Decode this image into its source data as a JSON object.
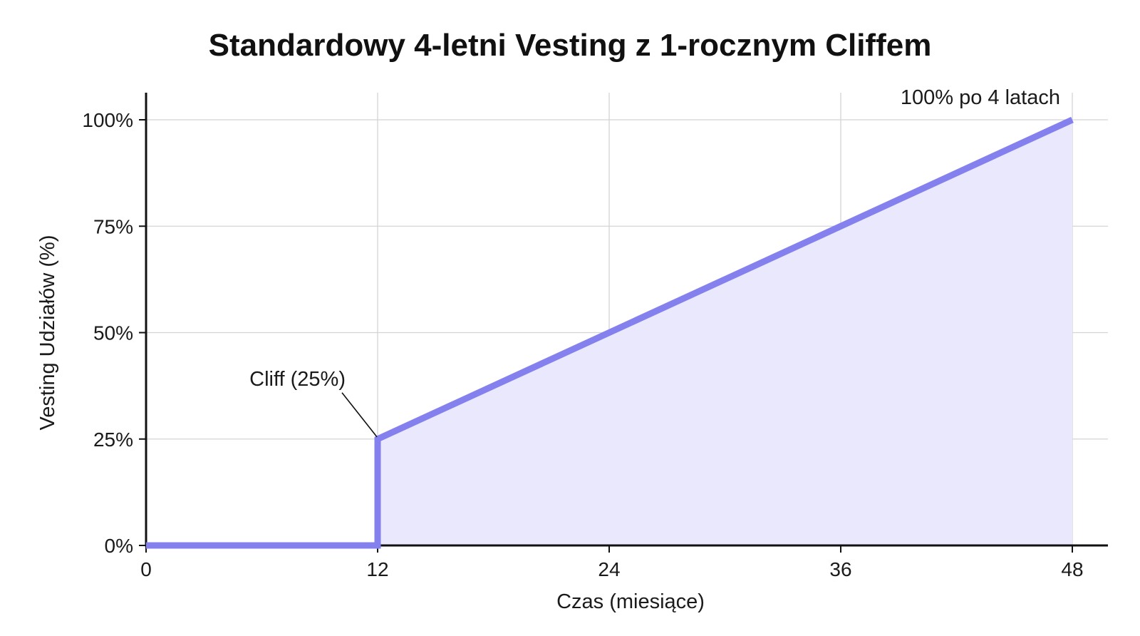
{
  "chart_data": {
    "type": "line",
    "title": "Standardowy 4-letni Vesting z 1-rocznym Cliffem",
    "xlabel": "Czas (miesiące)",
    "ylabel": "Vesting Udziałów (%)",
    "xlim": [
      0,
      48
    ],
    "ylim": [
      0,
      100
    ],
    "x_ticks": [
      0,
      12,
      24,
      36,
      48
    ],
    "x_tick_labels": [
      "0",
      "12",
      "24",
      "36",
      "48"
    ],
    "y_ticks": [
      0,
      25,
      50,
      75,
      100
    ],
    "y_tick_labels": [
      "0%",
      "25%",
      "50%",
      "75%",
      "100%"
    ],
    "grid": true,
    "legend": "none",
    "series": [
      {
        "color": "#8480ee",
        "fill_color": "#e9e8fc",
        "points": [
          {
            "x": 0,
            "y": 0
          },
          {
            "x": 12,
            "y": 0
          },
          {
            "x": 12,
            "y": 25
          },
          {
            "x": 48,
            "y": 100
          }
        ]
      }
    ],
    "annotations": [
      {
        "text": "Cliff (25%)",
        "x": 12,
        "y": 25,
        "arrow": true
      },
      {
        "text": "100% po 4 latach",
        "x": 48,
        "y": 100,
        "arrow": false
      }
    ]
  }
}
